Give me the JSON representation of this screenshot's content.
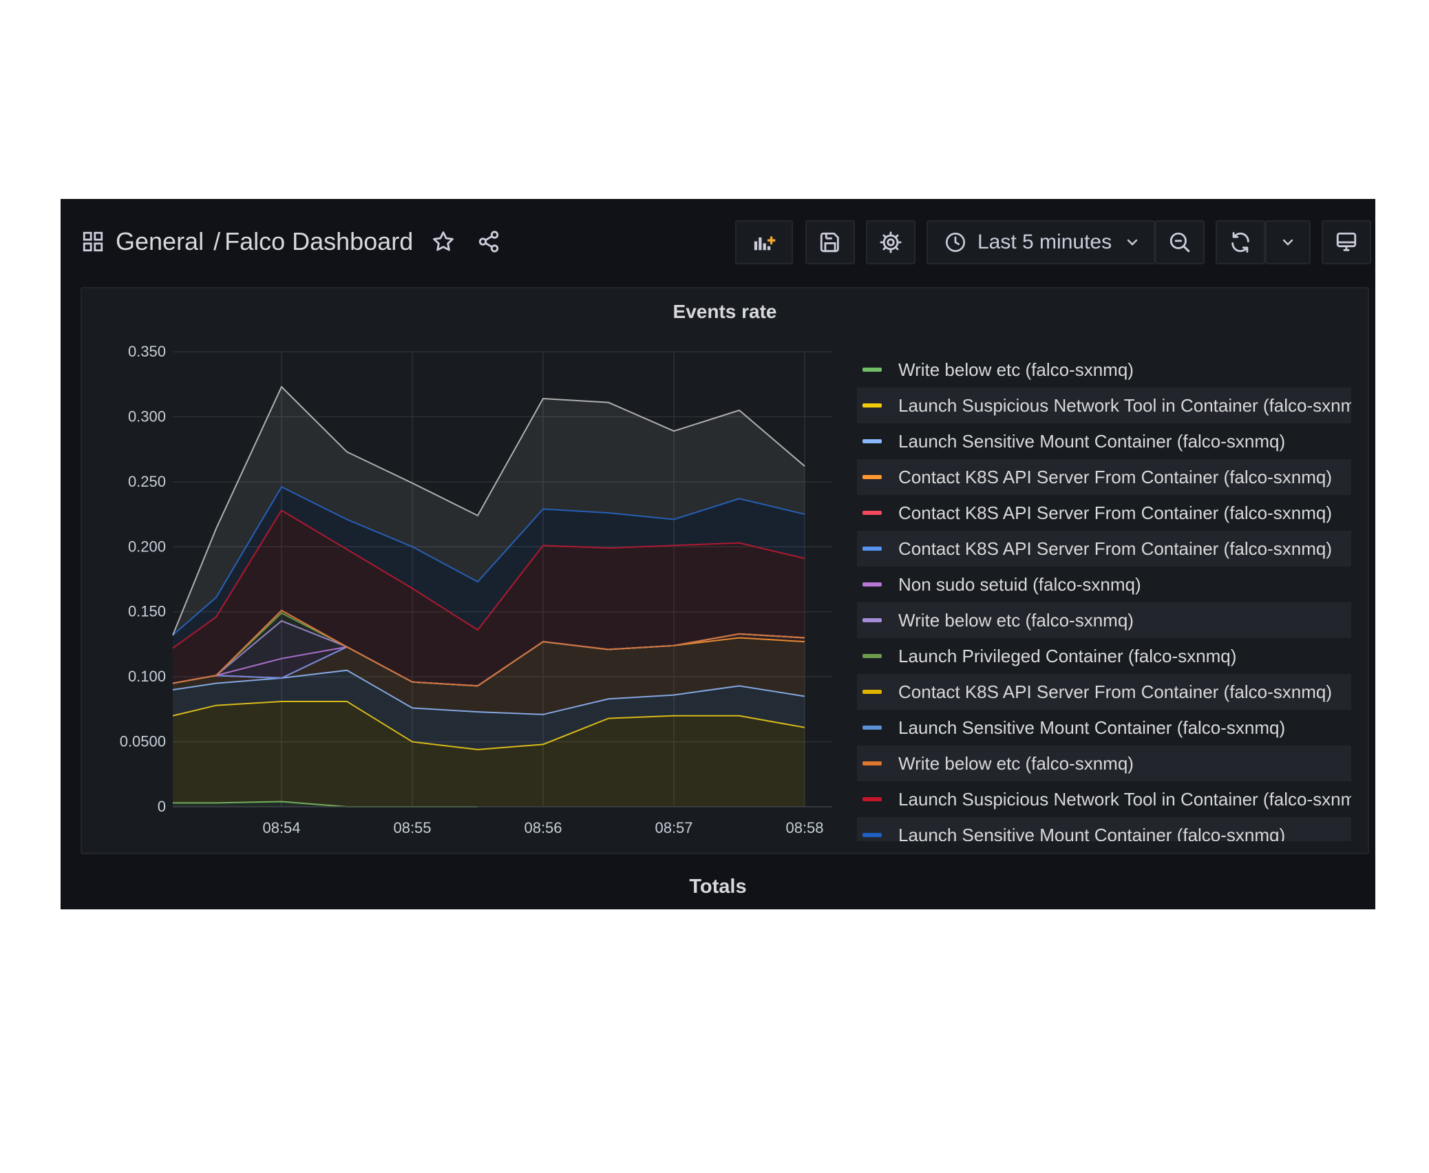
{
  "header": {
    "breadcrumb_folder": "General",
    "breadcrumb_separator": "/",
    "breadcrumb_dashboard": "Falco Dashboard",
    "time_range": "Last 5 minutes"
  },
  "icons": {
    "dashboards": "grid-icon",
    "star": "star-icon",
    "share": "share-icon",
    "add_panel": "add-panel-icon",
    "save": "save-icon",
    "settings": "gear-icon",
    "clock": "clock-icon",
    "dropdown": "chevron-down-icon",
    "zoom_out": "zoom-out-icon",
    "refresh": "refresh-icon",
    "tv_mode": "monitor-icon"
  },
  "panel": {
    "title": "Events rate"
  },
  "section": {
    "title": "Totals"
  },
  "chart_data": {
    "type": "area",
    "stacked": true,
    "title": "Events rate",
    "x": [
      "08:53:10",
      "08:53:30",
      "08:54:00",
      "08:54:30",
      "08:55:00",
      "08:55:30",
      "08:56:00",
      "08:56:30",
      "08:57:00",
      "08:57:30",
      "08:58:00"
    ],
    "x_ticks": [
      "08:54",
      "08:55",
      "08:56",
      "08:57",
      "08:58"
    ],
    "x_tick_positions": [
      2,
      4,
      6,
      8,
      10
    ],
    "y_ticks": [
      "0",
      "0.0500",
      "0.100",
      "0.150",
      "0.200",
      "0.250",
      "0.300",
      "0.350"
    ],
    "ylim": [
      0,
      0.35
    ],
    "grid": true,
    "legend_placement": "right",
    "series": [
      {
        "name": "Write below etc (falco-sxnmq)",
        "color": "#73bf69",
        "values": [
          0.003,
          0.003,
          0.004,
          0.0,
          0.0,
          0.0,
          null,
          null,
          null,
          null,
          null
        ]
      },
      {
        "name": "Launch Suspicious Network Tool in Container (falco-sxnmq)",
        "color": "#f2cc0c",
        "values": [
          0.067,
          0.075,
          0.077,
          0.081,
          0.05,
          0.044,
          0.048,
          0.068,
          0.07,
          0.07,
          0.061
        ]
      },
      {
        "name": "Launch Sensitive Mount Container (falco-sxnmq)",
        "color": "#8ab8ff",
        "values": [
          0.02,
          0.017,
          0.018,
          0.024,
          0.026,
          0.029,
          0.023,
          0.015,
          0.016,
          0.023,
          0.024
        ]
      },
      {
        "name": "Contact K8S API Server From Container (falco-sxnmq)",
        "color": "#ff9830",
        "values": [
          0.005,
          0.006,
          0.0,
          0.018,
          0.02,
          0.02,
          0.056,
          0.038,
          0.038,
          0.037,
          0.042
        ]
      },
      {
        "name": "Contact K8S API Server From Container (falco-sxnmq)",
        "color": "#f2495c",
        "values": [
          0.0,
          0.0,
          0.0,
          0.0,
          0.0,
          0.0,
          0.0,
          0.0,
          0.0,
          0.003,
          0.003
        ]
      },
      {
        "name": "Contact K8S API Server From Container (falco-sxnmq)",
        "color": "#5794f2",
        "values": [
          0.0,
          0.0,
          0.0,
          0.0,
          0.0,
          0.0,
          0.0,
          0.0,
          0.0,
          0.0,
          0.0
        ]
      },
      {
        "name": "Non sudo setuid (falco-sxnmq)",
        "color": "#b877d9",
        "values": [
          0.0,
          0.0,
          0.015,
          0.0,
          0.0,
          0.0,
          0.0,
          0.0,
          0.0,
          0.0,
          0.0
        ]
      },
      {
        "name": "Write below etc (falco-sxnmq)",
        "color": "#a48bd8",
        "values": [
          0.0,
          0.0,
          0.029,
          0.0,
          0.0,
          0.0,
          0.0,
          0.0,
          0.0,
          0.0,
          0.0
        ]
      },
      {
        "name": "Launch Privileged Container (falco-sxnmq)",
        "color": "#6e9c4f",
        "values": [
          0.0,
          0.0,
          0.006,
          0.0,
          0.0,
          0.0,
          0.0,
          0.0,
          0.0,
          0.0,
          0.0
        ]
      },
      {
        "name": "Contact K8S API Server From Container (falco-sxnmq)",
        "color": "#e0b400",
        "values": [
          0.0,
          0.0,
          0.002,
          0.0,
          0.0,
          0.0,
          0.0,
          0.0,
          0.0,
          0.0,
          0.0
        ]
      },
      {
        "name": "Launch Sensitive Mount Container (falco-sxnmq)",
        "color": "#5b8fd6",
        "values": [
          0.0,
          0.0,
          0.0,
          0.0,
          0.0,
          0.0,
          0.0,
          0.0,
          0.0,
          0.0,
          0.0
        ]
      },
      {
        "name": "Write below etc (falco-sxnmq)",
        "color": "#e0752d",
        "values": [
          0.0,
          0.0,
          0.0,
          0.0,
          0.0,
          0.0,
          0.0,
          0.0,
          0.0,
          0.0,
          0.0
        ]
      },
      {
        "name": "Launch Suspicious Network Tool in Container (falco-sxnmq)",
        "color": "#c4162a",
        "values": [
          0.027,
          0.045,
          0.077,
          0.075,
          0.072,
          0.043,
          0.074,
          0.078,
          0.077,
          0.07,
          0.061
        ]
      },
      {
        "name": "Launch Sensitive Mount Container (falco-sxnmq)",
        "color": "#1f60c4",
        "values": [
          0.01,
          0.015,
          0.018,
          0.023,
          0.032,
          0.037,
          0.028,
          0.027,
          0.02,
          0.034,
          0.034
        ]
      },
      {
        "name": "",
        "color": "#c0c0c0",
        "values": [
          0.0,
          0.053,
          0.077,
          0.052,
          0.049,
          0.051,
          0.085,
          0.085,
          0.068,
          0.068,
          0.037
        ]
      }
    ]
  }
}
